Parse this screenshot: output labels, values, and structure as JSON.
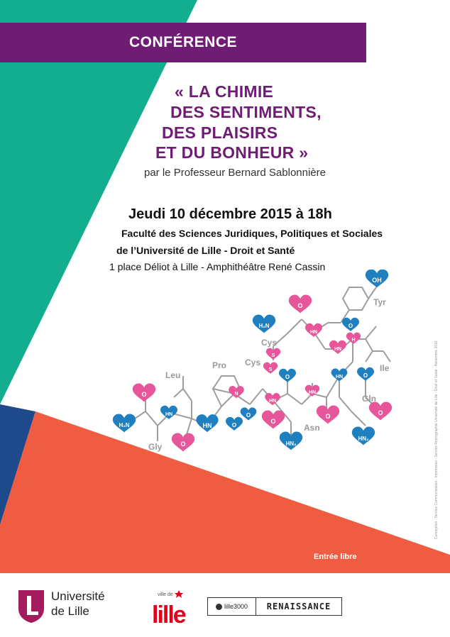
{
  "banner": {
    "label": "CONFÉRENCE"
  },
  "title": {
    "line1": "« LA CHIMIE",
    "line2": "DES SENTIMENTS,",
    "line3": "DES PLAISIRS",
    "line4": "ET DU BONHEUR »"
  },
  "speaker": "par le Professeur Bernard Sablonnière",
  "event": {
    "date": "Jeudi 10 décembre 2015 à 18h",
    "venue_line1": "Faculté des Sciences Juridiques, Politiques et Sociales",
    "venue_line2": "de l’Université de Lille - Droit et Santé",
    "address": "1 place Déliot à Lille - Amphithéâtre René Cassin"
  },
  "molecule_labels": {
    "oh": "OH",
    "tyr": "Tyr",
    "h2n_top": "H₂N",
    "cys1": "Cys",
    "s1": "S",
    "s2": "S",
    "cys2": "Cys",
    "ile": "Ile",
    "leu": "Leu",
    "pro": "Pro",
    "gln": "Gln",
    "h2n_left": "H₂N",
    "gly": "Gly",
    "asn": "Asn",
    "hn": "HN",
    "o": "O",
    "h": "H",
    "n": "N",
    "nh2_a": "HN₂",
    "nh2_b": "HN₂"
  },
  "entree": "Entrée libre",
  "side_credit": "Conception : Service Communication - Impression : Service Reprographie Université de Lille - Droit et Santé - Novembre 2015",
  "logos": {
    "universite_line1": "Université",
    "universite_line2": "de Lille",
    "ville_small": "ville de",
    "ville_big": "lille",
    "lille3000": "lille3000",
    "renaissance": "RENAISSANCE"
  },
  "colors": {
    "purple": "#6f1c74",
    "teal": "#12ae8f",
    "navy": "#1e4a8c",
    "coral": "#f05c42",
    "pink": "#e7559b",
    "blue": "#1f7fbf"
  }
}
